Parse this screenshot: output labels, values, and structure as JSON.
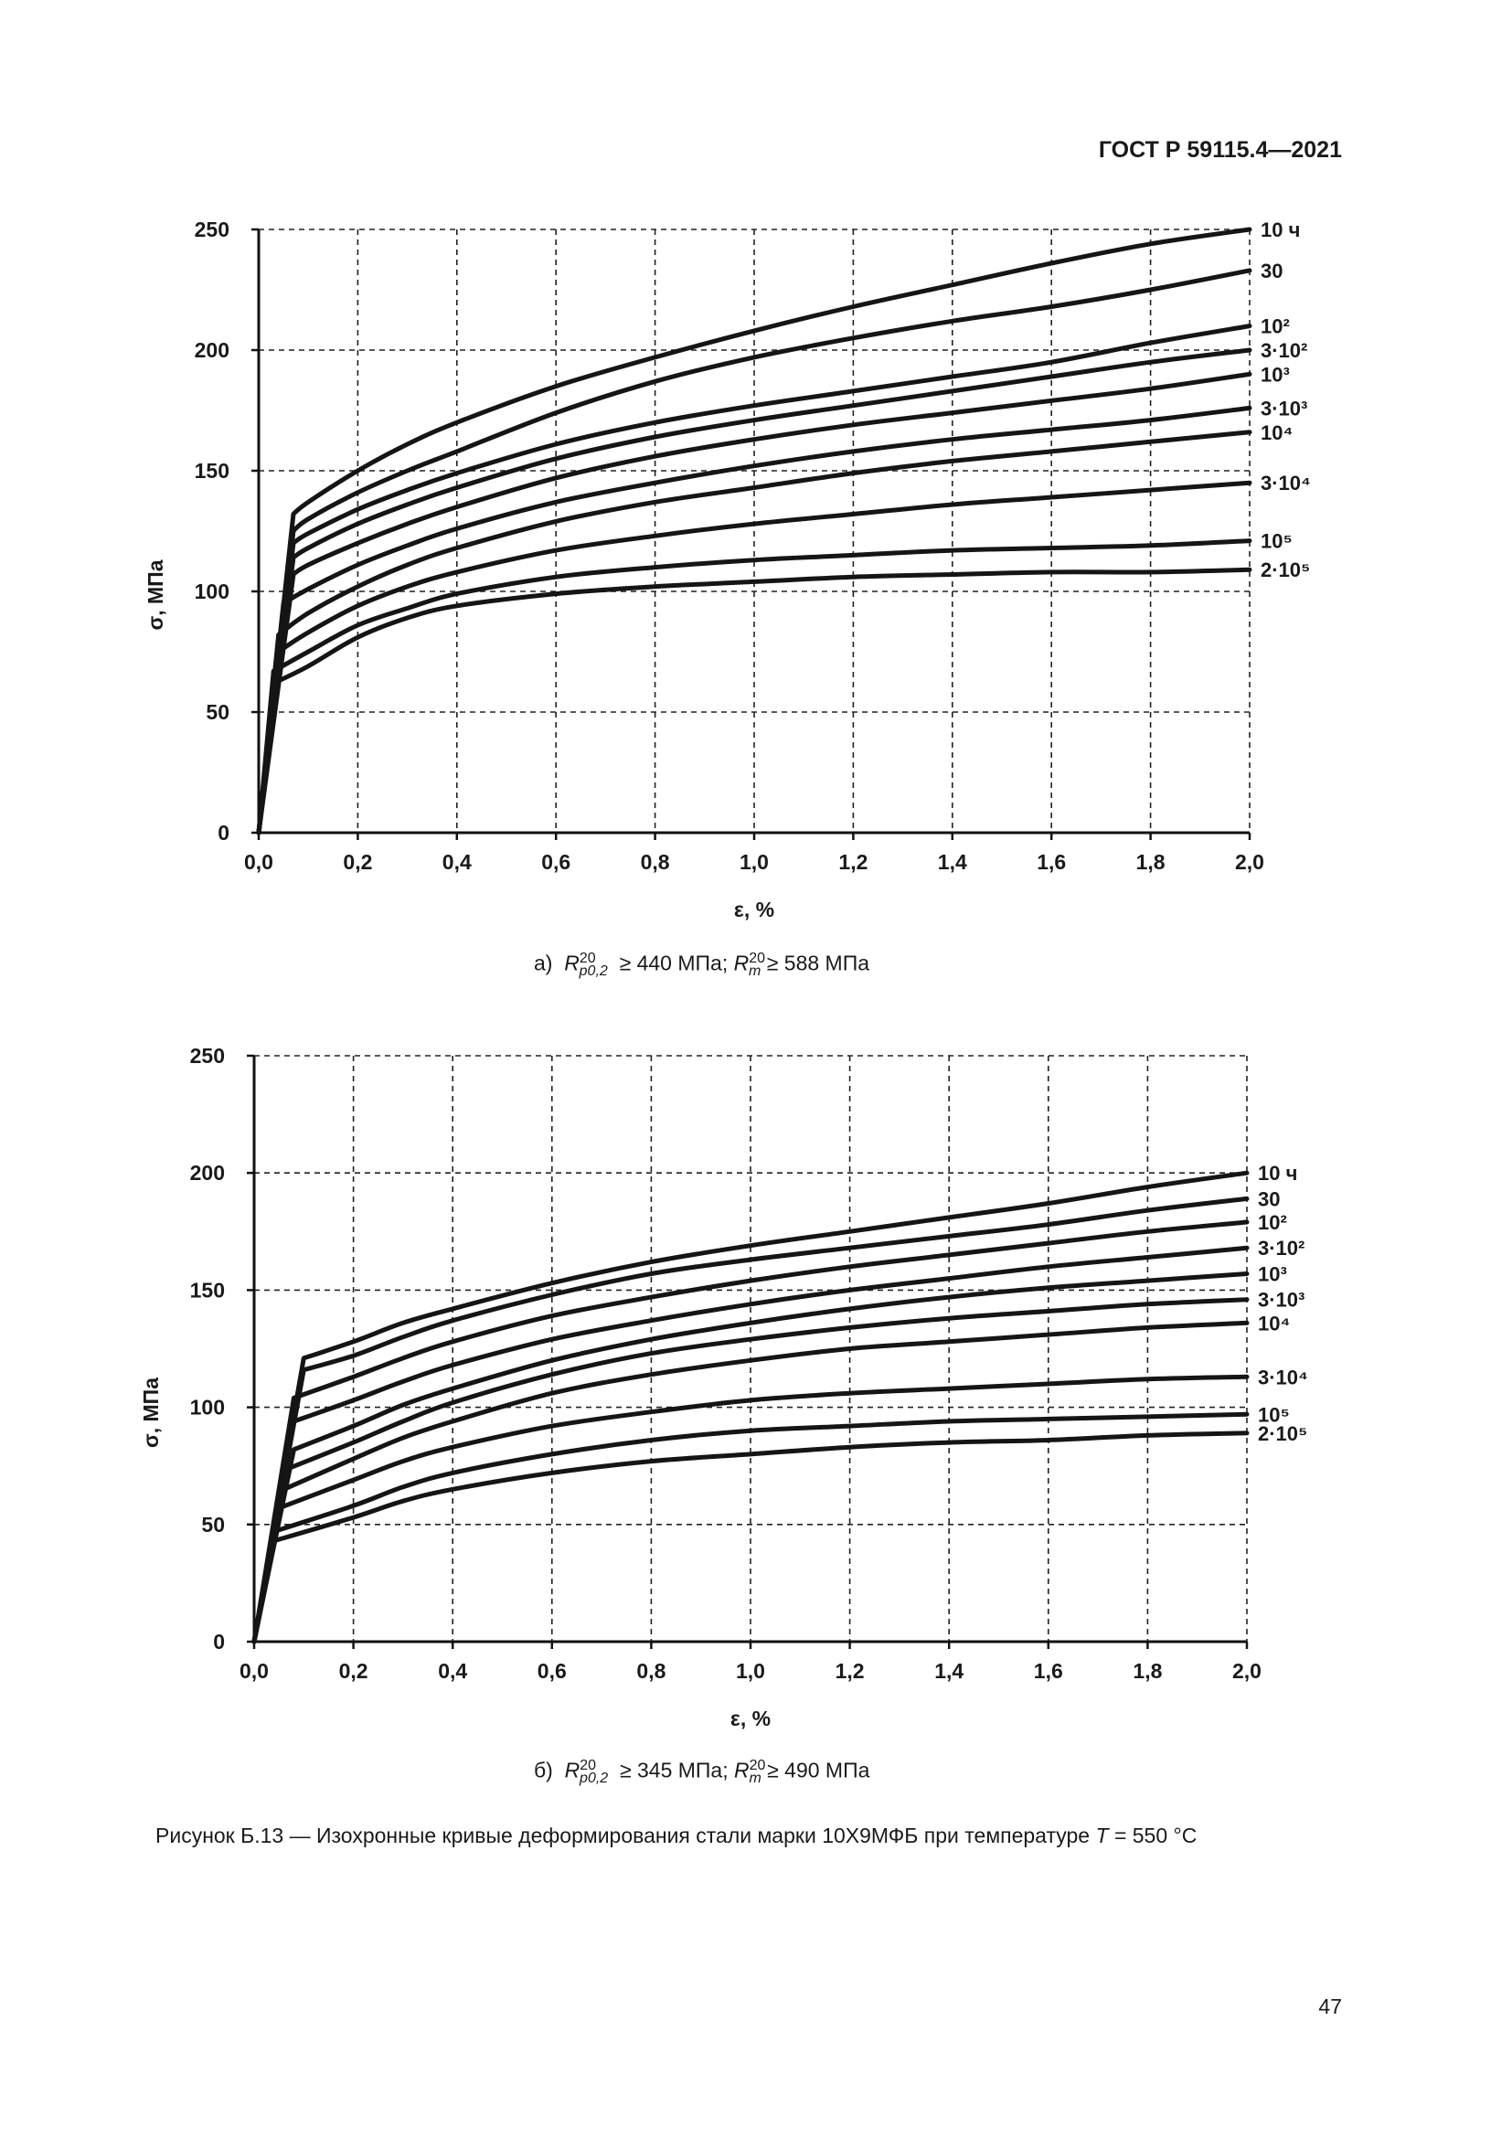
{
  "header": {
    "doc_code": "ГОСТ Р 59115.4—2021"
  },
  "chart_data": [
    {
      "type": "line",
      "id": "a",
      "xlabel": "ε, %",
      "ylabel": "σ, МПа",
      "xlim": [
        0,
        2.0
      ],
      "ylim": [
        0,
        250
      ],
      "xticks": [
        "0,0",
        "0,2",
        "0,4",
        "0,6",
        "0,8",
        "1,0",
        "1,2",
        "1,4",
        "1,6",
        "1,8",
        "2,0"
      ],
      "yticks": [
        "0",
        "50",
        "100",
        "150",
        "200",
        "250"
      ],
      "grid": true,
      "series": [
        {
          "name": "10 ч",
          "knee": [
            0.07,
            132
          ],
          "x": [
            0.1,
            0.2,
            0.3,
            0.4,
            0.6,
            0.8,
            1.0,
            1.2,
            1.4,
            1.6,
            1.8,
            2.0
          ],
          "y": [
            137,
            150,
            161,
            170,
            185,
            197,
            208,
            218,
            227,
            236,
            244,
            250
          ]
        },
        {
          "name": "30",
          "knee": [
            0.07,
            125
          ],
          "x": [
            0.1,
            0.2,
            0.3,
            0.4,
            0.6,
            0.8,
            1.0,
            1.2,
            1.4,
            1.6,
            1.8,
            2.0
          ],
          "y": [
            130,
            141,
            150,
            158,
            174,
            187,
            197,
            205,
            212,
            218,
            225,
            233
          ]
        },
        {
          "name": "10²",
          "knee": [
            0.07,
            120
          ],
          "x": [
            0.1,
            0.2,
            0.3,
            0.4,
            0.6,
            0.8,
            1.0,
            1.2,
            1.4,
            1.6,
            1.8,
            2.0
          ],
          "y": [
            124,
            134,
            142,
            149,
            161,
            170,
            177,
            183,
            189,
            195,
            203,
            210
          ]
        },
        {
          "name": "3·10²",
          "knee": [
            0.07,
            114
          ],
          "x": [
            0.1,
            0.2,
            0.3,
            0.4,
            0.6,
            0.8,
            1.0,
            1.2,
            1.4,
            1.6,
            1.8,
            2.0
          ],
          "y": [
            118,
            128,
            136,
            143,
            155,
            164,
            171,
            177,
            183,
            189,
            195,
            200
          ]
        },
        {
          "name": "10³",
          "knee": [
            0.07,
            107
          ],
          "x": [
            0.1,
            0.2,
            0.3,
            0.4,
            0.6,
            0.8,
            1.0,
            1.2,
            1.4,
            1.6,
            1.8,
            2.0
          ],
          "y": [
            111,
            120,
            128,
            135,
            147,
            156,
            163,
            169,
            174,
            179,
            184,
            190
          ]
        },
        {
          "name": "3·10³",
          "knee": [
            0.05,
            95
          ],
          "x": [
            0.1,
            0.2,
            0.3,
            0.4,
            0.6,
            0.8,
            1.0,
            1.2,
            1.4,
            1.6,
            1.8,
            2.0
          ],
          "y": [
            101,
            111,
            119,
            126,
            137,
            145,
            152,
            158,
            163,
            167,
            171,
            176
          ]
        },
        {
          "name": "10⁴",
          "knee": [
            0.04,
            82
          ],
          "x": [
            0.1,
            0.2,
            0.3,
            0.4,
            0.6,
            0.8,
            1.0,
            1.2,
            1.4,
            1.6,
            1.8,
            2.0
          ],
          "y": [
            91,
            102,
            111,
            118,
            129,
            137,
            143,
            149,
            154,
            158,
            162,
            166
          ]
        },
        {
          "name": "3·10⁴",
          "knee": [
            0.04,
            75
          ],
          "x": [
            0.1,
            0.2,
            0.3,
            0.4,
            0.6,
            0.8,
            1.0,
            1.2,
            1.4,
            1.6,
            1.8,
            2.0
          ],
          "y": [
            83,
            94,
            102,
            108,
            117,
            123,
            128,
            132,
            136,
            139,
            142,
            145
          ]
        },
        {
          "name": "10⁵",
          "knee": [
            0.03,
            67
          ],
          "x": [
            0.1,
            0.2,
            0.3,
            0.4,
            0.6,
            0.8,
            1.0,
            1.2,
            1.4,
            1.6,
            1.8,
            2.0
          ],
          "y": [
            75,
            86,
            93,
            99,
            106,
            110,
            113,
            115,
            117,
            118,
            119,
            121
          ]
        },
        {
          "name": "2·10⁵",
          "knee": [
            0.03,
            62
          ],
          "x": [
            0.1,
            0.2,
            0.3,
            0.4,
            0.6,
            0.8,
            1.0,
            1.2,
            1.4,
            1.6,
            1.8,
            2.0
          ],
          "y": [
            69,
            81,
            89,
            94,
            99,
            102,
            104,
            106,
            107,
            108,
            108,
            109
          ]
        }
      ],
      "caption": {
        "prefix": "а)",
        "sym1": "R",
        "sup1": "20",
        "sub1": "p0,2",
        "val1": "≥ 440 МПа;",
        "sym2": "R",
        "sup2": "20",
        "sub2": "m",
        "val2": "≥ 588 МПа"
      }
    },
    {
      "type": "line",
      "id": "b",
      "xlabel": "ε, %",
      "ylabel": "σ, МПа",
      "xlim": [
        0,
        2.0
      ],
      "ylim": [
        0,
        250
      ],
      "xticks": [
        "0,0",
        "0,2",
        "0,4",
        "0,6",
        "0,8",
        "1,0",
        "1,2",
        "1,4",
        "1,6",
        "1,8",
        "2,0"
      ],
      "yticks": [
        "0",
        "50",
        "100",
        "150",
        "200",
        "250"
      ],
      "grid": true,
      "series": [
        {
          "name": "10 ч",
          "knee": [
            0.1,
            121
          ],
          "x": [
            0.2,
            0.3,
            0.4,
            0.6,
            0.8,
            1.0,
            1.2,
            1.4,
            1.6,
            1.8,
            2.0
          ],
          "y": [
            128,
            136,
            142,
            153,
            162,
            169,
            175,
            181,
            187,
            194,
            200
          ]
        },
        {
          "name": "30",
          "knee": [
            0.1,
            116
          ],
          "x": [
            0.2,
            0.3,
            0.4,
            0.6,
            0.8,
            1.0,
            1.2,
            1.4,
            1.6,
            1.8,
            2.0
          ],
          "y": [
            122,
            130,
            137,
            148,
            157,
            163,
            168,
            173,
            178,
            184,
            189
          ]
        },
        {
          "name": "10²",
          "knee": [
            0.08,
            104
          ],
          "x": [
            0.2,
            0.3,
            0.4,
            0.6,
            0.8,
            1.0,
            1.2,
            1.4,
            1.6,
            1.8,
            2.0
          ],
          "y": [
            113,
            121,
            128,
            139,
            147,
            154,
            160,
            165,
            170,
            175,
            179
          ]
        },
        {
          "name": "3·10²",
          "knee": [
            0.08,
            94
          ],
          "x": [
            0.2,
            0.3,
            0.4,
            0.6,
            0.8,
            1.0,
            1.2,
            1.4,
            1.6,
            1.8,
            2.0
          ],
          "y": [
            103,
            111,
            118,
            129,
            137,
            144,
            150,
            155,
            160,
            164,
            168
          ]
        },
        {
          "name": "10³",
          "knee": [
            0.08,
            82
          ],
          "x": [
            0.2,
            0.3,
            0.4,
            0.6,
            0.8,
            1.0,
            1.2,
            1.4,
            1.6,
            1.8,
            2.0
          ],
          "y": [
            92,
            101,
            108,
            120,
            129,
            136,
            142,
            147,
            151,
            154,
            157
          ]
        },
        {
          "name": "3·10³",
          "knee": [
            0.07,
            74
          ],
          "x": [
            0.2,
            0.3,
            0.4,
            0.6,
            0.8,
            1.0,
            1.2,
            1.4,
            1.6,
            1.8,
            2.0
          ],
          "y": [
            85,
            94,
            102,
            114,
            123,
            129,
            134,
            138,
            141,
            144,
            146
          ]
        },
        {
          "name": "10⁴",
          "knee": [
            0.06,
            65
          ],
          "x": [
            0.2,
            0.3,
            0.4,
            0.6,
            0.8,
            1.0,
            1.2,
            1.4,
            1.6,
            1.8,
            2.0
          ],
          "y": [
            78,
            87,
            94,
            106,
            114,
            120,
            125,
            128,
            131,
            134,
            136
          ]
        },
        {
          "name": "3·10⁴",
          "knee": [
            0.05,
            57
          ],
          "x": [
            0.2,
            0.3,
            0.4,
            0.6,
            0.8,
            1.0,
            1.2,
            1.4,
            1.6,
            1.8,
            2.0
          ],
          "y": [
            69,
            77,
            83,
            92,
            98,
            103,
            106,
            108,
            110,
            112,
            113
          ]
        },
        {
          "name": "10⁵",
          "knee": [
            0.04,
            47
          ],
          "x": [
            0.2,
            0.3,
            0.4,
            0.6,
            0.8,
            1.0,
            1.2,
            1.4,
            1.6,
            1.8,
            2.0
          ],
          "y": [
            58,
            66,
            72,
            80,
            86,
            90,
            92,
            94,
            95,
            96,
            97
          ]
        },
        {
          "name": "2·10⁵",
          "knee": [
            0.04,
            43
          ],
          "x": [
            0.2,
            0.3,
            0.4,
            0.6,
            0.8,
            1.0,
            1.2,
            1.4,
            1.6,
            1.8,
            2.0
          ],
          "y": [
            53,
            60,
            65,
            72,
            77,
            80,
            83,
            85,
            86,
            88,
            89
          ]
        }
      ],
      "caption": {
        "prefix": "б)",
        "sym1": "R",
        "sup1": "20",
        "sub1": "p0,2",
        "val1": "≥ 345 МПа;",
        "sym2": "R",
        "sup2": "20",
        "sub2": "m",
        "val2": "≥ 490 МПа"
      }
    }
  ],
  "figure_caption": {
    "before": "Рисунок Б.13 — Изохронные кривые деформирования стали марки 10Х9МФБ при температуре",
    "symbol": "T",
    "after": "= 550 °С"
  },
  "page_number": "47"
}
